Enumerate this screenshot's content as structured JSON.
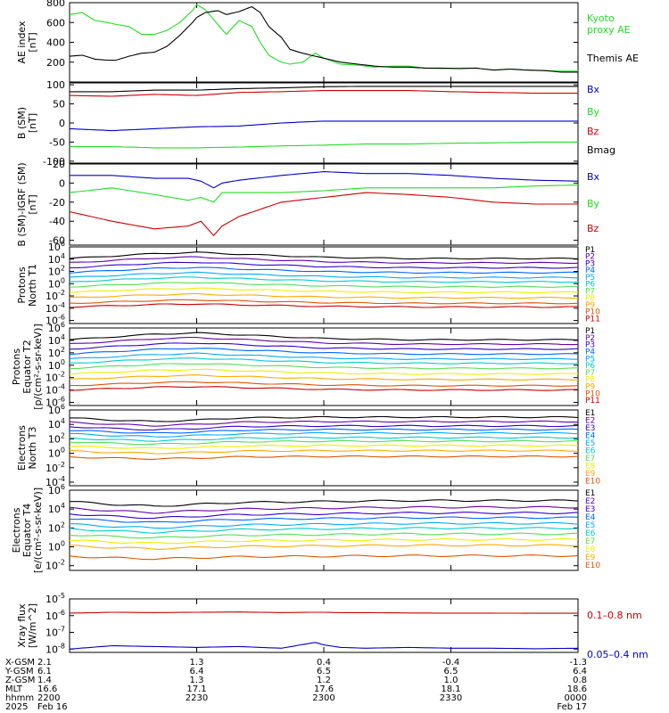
{
  "colors": {
    "black": "#000000",
    "green": "#22dd22",
    "red": "#cc0000",
    "blue": "#0000cc",
    "P": [
      "#000000",
      "#6600aa",
      "#3300cc",
      "#0066ff",
      "#00aaff",
      "#00cccc",
      "#55dd55",
      "#eeee00",
      "#ffaa00",
      "#dd5500",
      "#cc0000"
    ],
    "E": [
      "#000000",
      "#6600aa",
      "#3300cc",
      "#0066ff",
      "#00aaff",
      "#00cccc",
      "#55dd55",
      "#eeee00",
      "#ffaa00",
      "#dd5500",
      "#cc0000"
    ]
  },
  "chart_data": [
    {
      "type": "line",
      "panel": "ae",
      "ylabel": [
        "AE index",
        "[nT]"
      ],
      "y_ticks": [
        "800",
        "600",
        "400",
        "200"
      ],
      "ylim": [
        0,
        800
      ],
      "legend": [
        "Kyoto",
        "proxy AE",
        "Themis AE"
      ],
      "x_hours": [
        0,
        0.15,
        0.3,
        0.45,
        0.55,
        0.7,
        0.85,
        1.0,
        1.15,
        1.3,
        1.45,
        1.5,
        1.6,
        1.75,
        1.85,
        2.0,
        2.15,
        2.25,
        2.35,
        2.5,
        2.6,
        2.75,
        2.9,
        3.0,
        3.2,
        3.4,
        3.6,
        3.8,
        4.0,
        4.2,
        4.4,
        4.6,
        4.8,
        5.0,
        5.2,
        5.4,
        5.6,
        5.8,
        6.0
      ],
      "series": [
        {
          "name": "Kyoto proxy AE",
          "color": "green",
          "values": [
            680,
            700,
            620,
            600,
            580,
            560,
            480,
            480,
            520,
            600,
            720,
            780,
            730,
            580,
            480,
            620,
            560,
            400,
            270,
            200,
            180,
            200,
            290,
            240,
            180,
            170,
            150,
            160,
            160,
            140,
            135,
            140,
            140,
            120,
            130,
            120,
            115,
            110,
            110
          ]
        },
        {
          "name": "Themis AE",
          "color": "black",
          "values": [
            260,
            270,
            230,
            220,
            220,
            260,
            290,
            300,
            360,
            470,
            600,
            650,
            700,
            720,
            680,
            710,
            760,
            700,
            560,
            450,
            330,
            290,
            260,
            240,
            200,
            180,
            160,
            150,
            150,
            140,
            140,
            135,
            140,
            120,
            130,
            120,
            115,
            100,
            100
          ]
        }
      ]
    },
    {
      "type": "line",
      "panel": "b_sm",
      "ylabel": [
        "B (SM)",
        "[nT]"
      ],
      "y_ticks": [
        "100",
        "50",
        "0",
        "-50",
        "-100"
      ],
      "ylim": [
        -105,
        105
      ],
      "legend": [
        "Bx",
        "By",
        "Bz",
        "Bmag"
      ],
      "x_hours": [
        0,
        0.5,
        1,
        1.5,
        2,
        2.5,
        3,
        3.5,
        4,
        4.5,
        5,
        5.5,
        6
      ],
      "series": [
        {
          "name": "Bmag",
          "color": "black",
          "values": [
            82,
            82,
            86,
            86,
            90,
            92,
            95,
            96,
            96,
            96,
            96,
            96,
            96
          ]
        },
        {
          "name": "Bx",
          "color": "red",
          "values": [
            72,
            70,
            75,
            72,
            80,
            82,
            85,
            85,
            85,
            82,
            80,
            78,
            78
          ]
        },
        {
          "name": "Bz",
          "color": "blue",
          "values": [
            -15,
            -20,
            -15,
            -10,
            -8,
            0,
            5,
            5,
            5,
            5,
            5,
            5,
            5
          ]
        },
        {
          "name": "By",
          "color": "green",
          "values": [
            -62,
            -62,
            -65,
            -65,
            -63,
            -60,
            -58,
            -55,
            -55,
            -53,
            -52,
            -50,
            -50
          ]
        }
      ]
    },
    {
      "type": "line",
      "panel": "b_igrf",
      "ylabel": [
        "B (SM)-IGRF (SM)",
        "[nT]"
      ],
      "y_ticks": [
        "20",
        "0",
        "-20",
        "-40",
        "-60"
      ],
      "ylim": [
        -65,
        20
      ],
      "legend": [
        "Bx",
        "By",
        "Bz"
      ],
      "x_hours": [
        0,
        0.5,
        1,
        1.4,
        1.55,
        1.7,
        1.8,
        2.0,
        2.5,
        3.0,
        3.5,
        4.0,
        4.5,
        5.0,
        5.5,
        6.0
      ],
      "series": [
        {
          "name": "Bx",
          "color": "blue",
          "values": [
            8,
            8,
            5,
            5,
            2,
            -5,
            0,
            3,
            8,
            12,
            10,
            10,
            8,
            5,
            3,
            2
          ]
        },
        {
          "name": "By",
          "color": "green",
          "values": [
            -10,
            -5,
            -12,
            -18,
            -15,
            -20,
            -10,
            -10,
            -10,
            -8,
            -5,
            -5,
            -5,
            -5,
            -3,
            -2
          ]
        },
        {
          "name": "Bz",
          "color": "red",
          "values": [
            -30,
            -40,
            -48,
            -45,
            -40,
            -55,
            -45,
            -35,
            -20,
            -15,
            -10,
            -12,
            -15,
            -20,
            -22,
            -22
          ]
        }
      ]
    },
    {
      "type": "line",
      "panel": "p_north",
      "log": true,
      "ylabel": [
        "Protons",
        "North T1"
      ],
      "y_ticks": [
        "10^6",
        "10^4",
        "10^2",
        "10^0",
        "10^-2",
        "10^-4",
        "10^-6"
      ],
      "ylim_exp": [
        -6.5,
        6
      ],
      "legend": [
        "P1",
        "P2",
        "P3",
        "P4",
        "P5",
        "P6",
        "P7",
        "P8",
        "P9",
        "P10",
        "P11"
      ],
      "x_hours": [
        0,
        1,
        1.5,
        2,
        3,
        4,
        5,
        6
      ],
      "series_base_exp": [
        4.1,
        3.4,
        2.6,
        1.8,
        1.0,
        0.3,
        -0.5,
        -1.4,
        -2.3,
        -3.2,
        -3.8
      ],
      "bump": [
        0,
        0.8,
        1.0,
        0.7,
        0.2,
        0,
        0,
        0
      ]
    },
    {
      "type": "line",
      "panel": "p_eq",
      "log": true,
      "ylabel": [
        "Protons",
        "Equator T2",
        "[p/(cm²-s-sr-keV)]"
      ],
      "y_ticks": [
        "10^6",
        "10^4",
        "10^2",
        "10^0",
        "10^-2",
        "10^-4",
        "10^-6"
      ],
      "ylim_exp": [
        -6.5,
        6
      ],
      "legend": [
        "P1",
        "P2",
        "P3",
        "P4",
        "P5",
        "P6",
        "P7",
        "P8",
        "P9",
        "P10",
        "P11"
      ],
      "x_hours": [
        0,
        1,
        1.5,
        2,
        3,
        4,
        5,
        6
      ],
      "series_base_exp": [
        4.1,
        3.4,
        2.6,
        1.8,
        1.0,
        0.3,
        -0.5,
        -1.4,
        -2.3,
        -3.3,
        -4.0
      ],
      "bump": [
        0,
        0.9,
        1.1,
        0.8,
        0.2,
        0,
        0,
        0
      ]
    },
    {
      "type": "line",
      "panel": "e_north",
      "log": true,
      "ylabel": [
        "Electrons",
        "North T3"
      ],
      "y_ticks": [
        "10^6",
        "10^4",
        "10^2",
        "10^0",
        "10^-2",
        "10^-4"
      ],
      "ylim_exp": [
        -4.5,
        6
      ],
      "legend": [
        "E1",
        "E2",
        "E3",
        "E4",
        "E5",
        "E6",
        "E7",
        "E8",
        "E9",
        "E10"
      ],
      "x_hours": [
        0,
        0.5,
        1,
        1.5,
        2,
        3,
        4,
        5,
        6
      ],
      "series_base_exp": [
        4.9,
        4.3,
        3.7,
        3.2,
        2.7,
        2.1,
        1.6,
        1.0,
        0.3,
        -0.5
      ],
      "dip": [
        0,
        -0.3,
        -0.5,
        -0.3,
        0,
        0.1,
        0.1,
        0.1,
        0.1
      ]
    },
    {
      "type": "line",
      "panel": "e_eq",
      "log": true,
      "ylabel": [
        "Electrons",
        "Equator T4",
        "[e/(cm²-s-sr-keV)]"
      ],
      "y_ticks": [
        "10^6",
        "10^4",
        "10^2",
        "10^0",
        "10^-2"
      ],
      "ylim_exp": [
        -2.5,
        6
      ],
      "legend": [
        "E1",
        "E2",
        "E3",
        "E4",
        "E5",
        "E6",
        "E7",
        "E8",
        "E9",
        "E10"
      ],
      "x_hours": [
        0,
        0.5,
        1,
        1.5,
        2,
        3,
        4,
        5,
        6
      ],
      "series_base_exp": [
        4.8,
        4.1,
        3.5,
        3.0,
        2.4,
        1.9,
        1.3,
        0.7,
        0.1,
        -1.0
      ],
      "dip": [
        0,
        -0.3,
        -0.5,
        -0.3,
        -0.1,
        0,
        0.1,
        0.1,
        0.1
      ]
    },
    {
      "type": "line",
      "panel": "xray",
      "log": true,
      "ylabel": [
        "Xray flux",
        "[W/m^2]"
      ],
      "y_ticks": [
        "10^-5",
        "10^-6",
        "10^-7",
        "10^-8"
      ],
      "ylim_exp": [
        -8.2,
        -5
      ],
      "legend": [
        "0.1–0.8 nm",
        "0.05–0.4 nm"
      ],
      "x_hours": [
        0,
        0.5,
        1,
        1.5,
        2,
        2.5,
        2.9,
        3.0,
        3.2,
        3.5,
        4,
        4.5,
        5,
        5.5,
        6
      ],
      "series": [
        {
          "name": "0.1–0.8 nm",
          "color": "red",
          "values": [
            -5.85,
            -5.8,
            -5.82,
            -5.8,
            -5.78,
            -5.82,
            -5.8,
            -5.8,
            -5.82,
            -5.82,
            -5.84,
            -5.85,
            -5.85,
            -5.86,
            -5.86
          ]
        },
        {
          "name": "0.05–0.4 nm",
          "color": "blue",
          "values": [
            -8.0,
            -7.8,
            -7.85,
            -7.9,
            -7.85,
            -7.95,
            -7.6,
            -7.75,
            -7.9,
            -7.95,
            -7.9,
            -7.95,
            -7.95,
            -7.98,
            -7.95
          ]
        }
      ]
    }
  ],
  "x_axis": {
    "row_labels": [
      "X-GSM",
      "Y-GSM",
      "Z-GSM",
      "MLT",
      "hhmm",
      "2025"
    ],
    "columns": [
      [
        "2.1",
        "6.1",
        "1.4",
        "16.6",
        "2200",
        "Feb 16"
      ],
      [
        "1.3",
        "6.4",
        "1.3",
        "17.1",
        "2230",
        ""
      ],
      [
        "0.4",
        "6.5",
        "1.2",
        "17.6",
        "2300",
        ""
      ],
      [
        "-0.4",
        "6.5",
        "1.0",
        "18.1",
        "2330",
        ""
      ],
      [
        "-1.3",
        "6.4",
        "0.8",
        "18.6",
        "0000",
        "Feb 17"
      ]
    ]
  }
}
